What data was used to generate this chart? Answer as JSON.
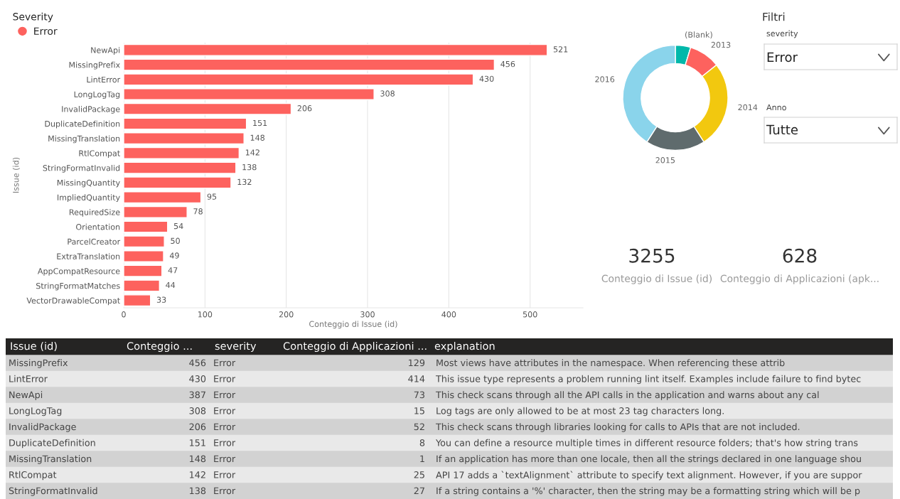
{
  "chart_data": [
    {
      "type": "bar",
      "orientation": "horizontal",
      "xlabel": "Conteggio di Issue (id)",
      "ylabel": "Issue (id)",
      "legend_title": "Severity",
      "legend": "top left",
      "marker": "circle",
      "categories": [
        "NewApi",
        "MissingPrefix",
        "LintError",
        "LongLogTag",
        "InvalidPackage",
        "DuplicateDefinition",
        "MissingTranslation",
        "RtlCompat",
        "StringFormatInvalid",
        "MissingQuantity",
        "ImpliedQuantity",
        "RequiredSize",
        "Orientation",
        "ParcelCreator",
        "ExtraTranslation",
        "AppCompatResource",
        "StringFormatMatches",
        "VectorDrawableCompat"
      ],
      "series": [
        {
          "name": "Error",
          "color": "#fd625e",
          "values": [
            521,
            456,
            430,
            308,
            206,
            151,
            148,
            142,
            138,
            132,
            95,
            78,
            54,
            50,
            49,
            47,
            44,
            33
          ]
        }
      ],
      "data_labels": true,
      "xlim": [
        0,
        565
      ],
      "xticks": [
        0,
        100,
        200,
        300,
        400,
        500
      ],
      "grid": "x"
    },
    {
      "type": "donut",
      "categories": [
        "(Blank)",
        "2013",
        "2014",
        "2015",
        "2016"
      ],
      "values": [
        4.7,
        9.6,
        26.6,
        18.2,
        40.9
      ],
      "colors": [
        "#01b8aa",
        "#fd625e",
        "#f2c80f",
        "#5f6b6d",
        "#8ad4eb"
      ]
    },
    {
      "type": "other",
      "title": "Filtri",
      "annotations": [
        "severity",
        "Error",
        "Anno",
        "Tutte"
      ]
    },
    {
      "type": "other",
      "annotations": [
        "3255",
        "Conteggio di Issue (id)",
        "628",
        "Conteggio di Applicazioni (apk..."
      ]
    },
    {
      "type": "other",
      "categories": [
        "Issue (id)",
        "Conteggio ...",
        "severity",
        "Conteggio di Applicazioni ...",
        "explanation"
      ],
      "cell_labels": [
        [
          "MissingPrefix",
          "456",
          "Error",
          "129",
          "Most views have attributes in the namespace. When referencing these attrib"
        ],
        [
          "LintError",
          "430",
          "Error",
          "414",
          "This issue type represents a problem running lint itself. Examples include failure to find bytec"
        ],
        [
          "NewApi",
          "387",
          "Error",
          "73",
          "This check scans through all the API calls in the application and warns about any cal"
        ],
        [
          "LongLogTag",
          "308",
          "Error",
          "15",
          "Log tags are only allowed to be at most 23 tag characters long."
        ],
        [
          "InvalidPackage",
          "206",
          "Error",
          "52",
          "This check scans through libraries looking for calls to APIs that are not included."
        ],
        [
          "DuplicateDefinition",
          "151",
          "Error",
          "8",
          "You can define a resource multiple times in different resource folders; that's how string trans"
        ],
        [
          "MissingTranslation",
          "148",
          "Error",
          "1",
          "If an application has more than one locale, then all the strings declared in one language shou"
        ],
        [
          "RtlCompat",
          "142",
          "Error",
          "25",
          "API 17 adds a `textAlignment` attribute to specify text alignment. However, if you are suppor"
        ],
        [
          "StringFormatInvalid",
          "138",
          "Error",
          "27",
          "If a string contains a '%' character, then the string may be a formatting string which will be p"
        ]
      ]
    }
  ]
}
